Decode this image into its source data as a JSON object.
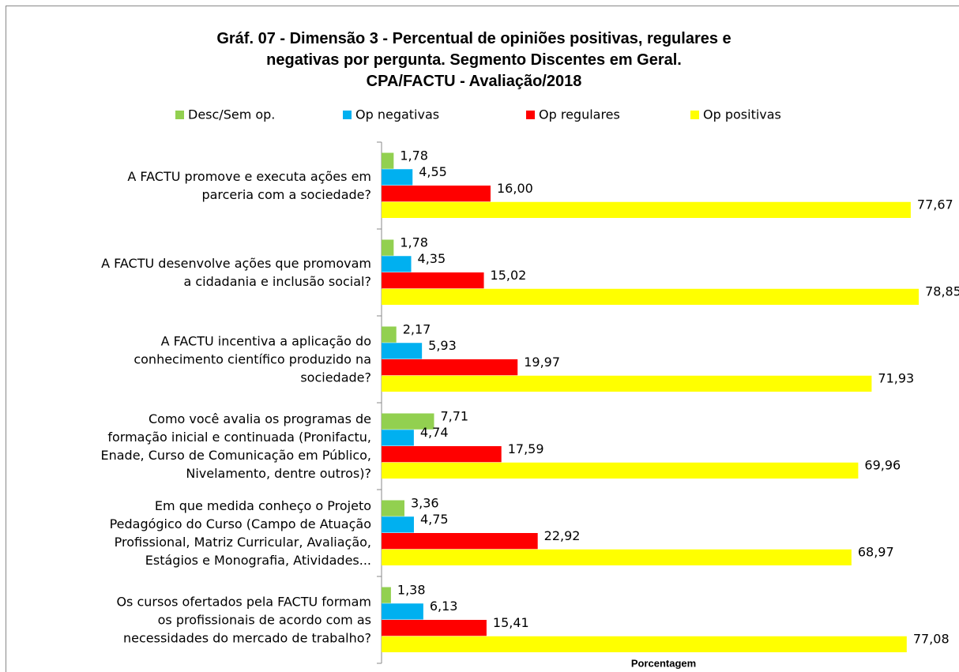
{
  "chart_data": {
    "type": "barh",
    "title": "Gráf. 07 - Dimensão 3 - Percentual de opiniões positivas, regulares e\nnegativas por pergunta. Segmento Discentes em Geral.\nCPA/FACTU - Avaliação/2018",
    "xlabel": "Porcentagem",
    "categories": [
      "A FACTU promove e executa ações em\nparceria com a sociedade?",
      "A FACTU desenvolve ações que promovam\na cidadania e inclusão social?",
      "A FACTU incentiva a aplicação do\nconhecimento científico produzido na\nsociedade?",
      "Como você avalia os programas de\nformação inicial e continuada (Pronifactu,\nEnade, Curso de Comunicação em Público,\nNivelamento, dentre outros)?",
      "Em que medida conheço o Projeto\nPedagógico do Curso (Campo de Atuação\nProfissional, Matriz Curricular, Avaliação,\nEstágios e Monografia, Atividades...",
      "Os cursos ofertados pela FACTU formam\nos profissionais de acordo com as\nnecessidades do mercado de trabalho?"
    ],
    "series": [
      {
        "name": "Desc/Sem op.",
        "color": "#92d050",
        "values": [
          1.78,
          1.78,
          2.17,
          7.71,
          3.36,
          1.38
        ],
        "value_labels": [
          "1,78",
          "1,78",
          "2,17",
          "7,71",
          "3,36",
          "1,38"
        ]
      },
      {
        "name": "Op negativas",
        "color": "#00b0f0",
        "values": [
          4.55,
          4.35,
          5.93,
          4.74,
          4.75,
          6.13
        ],
        "value_labels": [
          "4,55",
          "4,35",
          "5,93",
          "4,74",
          "4,75",
          "6,13"
        ]
      },
      {
        "name": "Op regulares",
        "color": "#ff0000",
        "values": [
          16.0,
          15.02,
          19.97,
          17.59,
          22.92,
          15.41
        ],
        "value_labels": [
          "16,00",
          "15,02",
          "19,97",
          "17,59",
          "22,92",
          "15,41"
        ]
      },
      {
        "name": "Op positivas",
        "color": "#ffff00",
        "values": [
          77.67,
          78.85,
          71.93,
          69.96,
          68.97,
          77.08
        ],
        "value_labels": [
          "77,67",
          "78,85",
          "71,93",
          "69,96",
          "68,97",
          "77,08"
        ]
      }
    ],
    "xlim": [
      0,
      80
    ],
    "legend": "top"
  }
}
